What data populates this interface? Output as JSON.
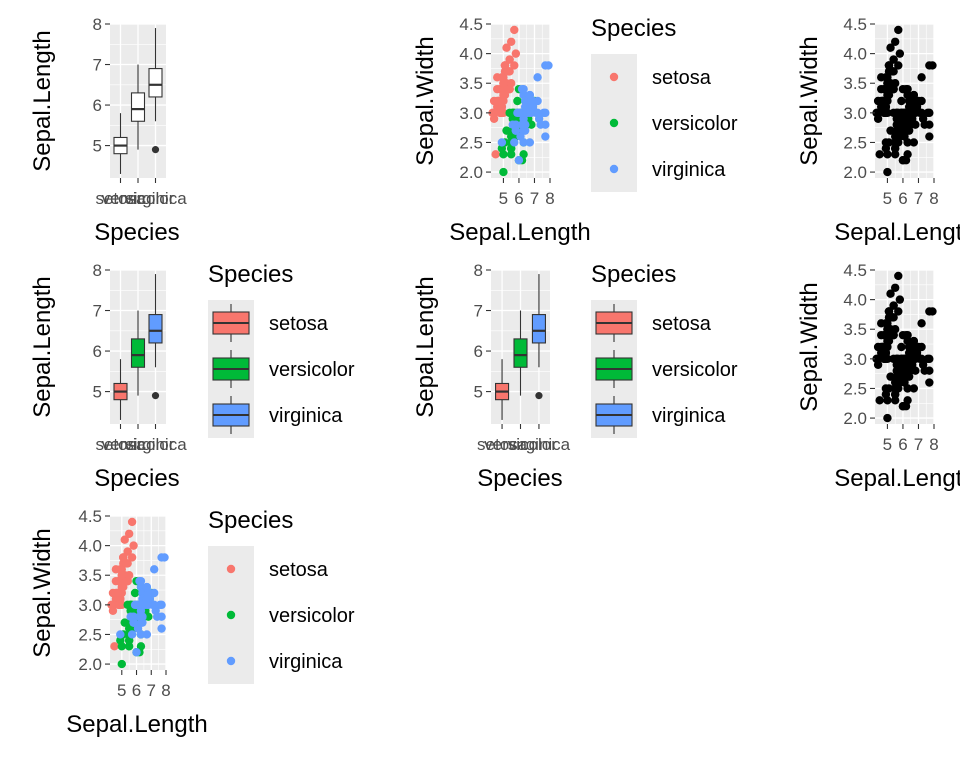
{
  "colors": {
    "setosa": "#F8766D",
    "versicolor": "#00BA38",
    "virginica": "#619CFF",
    "mono_point": "#000000",
    "panel_bg": "#EBEBEB",
    "grid": "#FFFFFF"
  },
  "chart_data": [
    {
      "type": "box",
      "variant": "plain",
      "title": "",
      "xlabel": "Species",
      "ylabel": "Sepal.Length",
      "categories": [
        "setosa",
        "versicolor",
        "virginica"
      ],
      "yticks": [
        "5",
        "6",
        "7",
        "8"
      ],
      "ylim": [
        4.2,
        8.0
      ],
      "stats": [
        {
          "min": 4.3,
          "q1": 4.8,
          "median": 5.0,
          "q3": 5.2,
          "max": 5.8,
          "outliers": []
        },
        {
          "min": 4.9,
          "q1": 5.6,
          "median": 5.9,
          "q3": 6.3,
          "max": 7.0,
          "outliers": []
        },
        {
          "min": 5.6,
          "q1": 6.2,
          "median": 6.5,
          "q3": 6.9,
          "max": 7.9,
          "outliers": [
            4.9
          ]
        }
      ],
      "legend": null
    },
    {
      "type": "scatter",
      "variant": "colored",
      "title": "",
      "xlabel": "Sepal.Length",
      "ylabel": "Sepal.Width",
      "xticks": [
        "5",
        "6",
        "7",
        "8"
      ],
      "yticks": [
        "2.0",
        "2.5",
        "3.0",
        "3.5",
        "4.0",
        "4.5"
      ],
      "xlim": [
        4.2,
        8.0
      ],
      "ylim": [
        1.9,
        4.5
      ],
      "series_source": "iris",
      "legend": {
        "title": "Species",
        "position": "right",
        "entries": [
          "setosa",
          "versicolor",
          "virginica"
        ]
      }
    },
    {
      "type": "scatter",
      "variant": "mono",
      "title": "",
      "xlabel": "Sepal.Length",
      "ylabel": "Sepal.Width",
      "xticks": [
        "5",
        "6",
        "7",
        "8"
      ],
      "yticks": [
        "2.0",
        "2.5",
        "3.0",
        "3.5",
        "4.0",
        "4.5"
      ],
      "xlim": [
        4.2,
        8.0
      ],
      "ylim": [
        1.9,
        4.5
      ],
      "series_source": "iris",
      "legend": null
    },
    {
      "type": "box",
      "variant": "filled",
      "title": "",
      "xlabel": "Species",
      "ylabel": "Sepal.Length",
      "categories": [
        "setosa",
        "versicolor",
        "virginica"
      ],
      "yticks": [
        "5",
        "6",
        "7",
        "8"
      ],
      "ylim": [
        4.2,
        8.0
      ],
      "stats": [
        {
          "min": 4.3,
          "q1": 4.8,
          "median": 5.0,
          "q3": 5.2,
          "max": 5.8,
          "outliers": []
        },
        {
          "min": 4.9,
          "q1": 5.6,
          "median": 5.9,
          "q3": 6.3,
          "max": 7.0,
          "outliers": []
        },
        {
          "min": 5.6,
          "q1": 6.2,
          "median": 6.5,
          "q3": 6.9,
          "max": 7.9,
          "outliers": [
            4.9
          ]
        }
      ],
      "legend": {
        "title": "Species",
        "position": "right",
        "entries": [
          "setosa",
          "versicolor",
          "virginica"
        ]
      }
    },
    {
      "type": "box",
      "variant": "filled",
      "title": "",
      "xlabel": "Species",
      "ylabel": "Sepal.Length",
      "categories": [
        "setosa",
        "versicolor",
        "virginica"
      ],
      "yticks": [
        "5",
        "6",
        "7",
        "8"
      ],
      "ylim": [
        4.2,
        8.0
      ],
      "stats": [
        {
          "min": 4.3,
          "q1": 4.8,
          "median": 5.0,
          "q3": 5.2,
          "max": 5.8,
          "outliers": []
        },
        {
          "min": 4.9,
          "q1": 5.6,
          "median": 5.9,
          "q3": 6.3,
          "max": 7.0,
          "outliers": []
        },
        {
          "min": 5.6,
          "q1": 6.2,
          "median": 6.5,
          "q3": 6.9,
          "max": 7.9,
          "outliers": [
            4.9
          ]
        }
      ],
      "legend": {
        "title": "Species",
        "position": "right",
        "entries": [
          "setosa",
          "versicolor",
          "virginica"
        ]
      }
    },
    {
      "type": "scatter",
      "variant": "mono",
      "title": "",
      "xlabel": "Sepal.Length",
      "ylabel": "Sepal.Width",
      "xticks": [
        "5",
        "6",
        "7",
        "8"
      ],
      "yticks": [
        "2.0",
        "2.5",
        "3.0",
        "3.5",
        "4.0",
        "4.5"
      ],
      "xlim": [
        4.2,
        8.0
      ],
      "ylim": [
        1.9,
        4.5
      ],
      "series_source": "iris",
      "legend": null
    },
    {
      "type": "scatter",
      "variant": "colored",
      "title": "",
      "xlabel": "Sepal.Length",
      "ylabel": "Sepal.Width",
      "xticks": [
        "5",
        "6",
        "7",
        "8"
      ],
      "yticks": [
        "2.0",
        "2.5",
        "3.0",
        "3.5",
        "4.0",
        "4.5"
      ],
      "xlim": [
        4.2,
        8.0
      ],
      "ylim": [
        1.9,
        4.5
      ],
      "series_source": "iris",
      "legend": {
        "title": "Species",
        "position": "right",
        "entries": [
          "setosa",
          "versicolor",
          "virginica"
        ]
      }
    }
  ],
  "iris": {
    "setosa": {
      "sepal_length": [
        5.1,
        4.9,
        4.7,
        4.6,
        5.0,
        5.4,
        4.6,
        5.0,
        4.4,
        4.9,
        5.4,
        4.8,
        4.8,
        4.3,
        5.8,
        5.7,
        5.4,
        5.1,
        5.7,
        5.1,
        5.4,
        5.1,
        4.6,
        5.1,
        4.8,
        5.0,
        5.0,
        5.2,
        5.2,
        4.7,
        4.8,
        5.4,
        5.2,
        5.5,
        4.9,
        5.0,
        5.5,
        4.9,
        4.4,
        5.1,
        5.0,
        4.5,
        4.4,
        5.0,
        5.1,
        4.8,
        5.1,
        4.6,
        5.3,
        5.0
      ],
      "sepal_width": [
        3.5,
        3.0,
        3.2,
        3.1,
        3.6,
        3.9,
        3.4,
        3.4,
        2.9,
        3.1,
        3.7,
        3.4,
        3.0,
        3.0,
        4.0,
        4.4,
        3.9,
        3.5,
        3.8,
        3.8,
        3.4,
        3.7,
        3.6,
        3.3,
        3.4,
        3.0,
        3.4,
        3.5,
        3.4,
        3.2,
        3.1,
        3.4,
        4.1,
        4.2,
        3.1,
        3.2,
        3.5,
        3.6,
        3.0,
        3.4,
        3.5,
        2.3,
        3.2,
        3.5,
        3.8,
        3.0,
        3.8,
        3.2,
        3.7,
        3.3
      ]
    },
    "versicolor": {
      "sepal_length": [
        7.0,
        6.4,
        6.9,
        5.5,
        6.5,
        5.7,
        6.3,
        4.9,
        6.6,
        5.2,
        5.0,
        5.9,
        6.0,
        6.1,
        5.6,
        6.7,
        5.6,
        5.8,
        6.2,
        5.6,
        5.9,
        6.1,
        6.3,
        6.1,
        6.4,
        6.6,
        6.8,
        6.7,
        6.0,
        5.7,
        5.5,
        5.5,
        5.8,
        6.0,
        5.4,
        6.0,
        6.7,
        6.3,
        5.6,
        5.5,
        5.5,
        6.1,
        5.8,
        5.0,
        5.6,
        5.7,
        5.7,
        6.2,
        5.1,
        5.7
      ],
      "sepal_width": [
        3.2,
        3.2,
        3.1,
        2.3,
        2.8,
        2.8,
        3.3,
        2.4,
        2.9,
        2.7,
        2.0,
        3.0,
        2.2,
        2.9,
        2.9,
        3.1,
        3.0,
        2.7,
        2.2,
        2.5,
        3.2,
        2.8,
        2.5,
        2.8,
        2.9,
        3.0,
        2.8,
        3.0,
        2.9,
        2.6,
        2.4,
        2.4,
        2.7,
        2.7,
        3.0,
        3.4,
        3.1,
        2.3,
        3.0,
        2.5,
        2.6,
        3.0,
        2.6,
        2.3,
        2.7,
        3.0,
        2.9,
        2.9,
        2.5,
        2.8
      ]
    },
    "virginica": {
      "sepal_length": [
        6.3,
        5.8,
        7.1,
        6.3,
        6.5,
        7.6,
        4.9,
        7.3,
        6.7,
        7.2,
        6.5,
        6.4,
        6.8,
        5.7,
        5.8,
        6.4,
        6.5,
        7.7,
        7.7,
        6.0,
        6.9,
        5.6,
        7.7,
        6.3,
        6.7,
        7.2,
        6.2,
        6.1,
        6.4,
        7.2,
        7.4,
        7.9,
        6.4,
        6.3,
        6.1,
        7.7,
        6.3,
        6.4,
        6.0,
        6.9,
        6.7,
        6.9,
        5.8,
        6.8,
        6.7,
        6.7,
        6.3,
        6.5,
        6.2,
        5.9
      ],
      "sepal_width": [
        3.3,
        2.7,
        3.0,
        2.9,
        3.0,
        3.0,
        2.5,
        2.9,
        2.5,
        3.6,
        3.2,
        2.7,
        3.0,
        2.5,
        2.8,
        3.2,
        3.0,
        3.8,
        2.6,
        2.2,
        3.2,
        2.8,
        2.8,
        2.7,
        3.3,
        3.2,
        2.8,
        3.0,
        2.8,
        3.0,
        2.8,
        3.8,
        2.8,
        2.8,
        2.6,
        3.0,
        3.4,
        3.1,
        3.0,
        3.1,
        3.1,
        3.1,
        2.7,
        3.2,
        3.3,
        3.0,
        2.5,
        3.0,
        3.4,
        3.0
      ]
    }
  }
}
